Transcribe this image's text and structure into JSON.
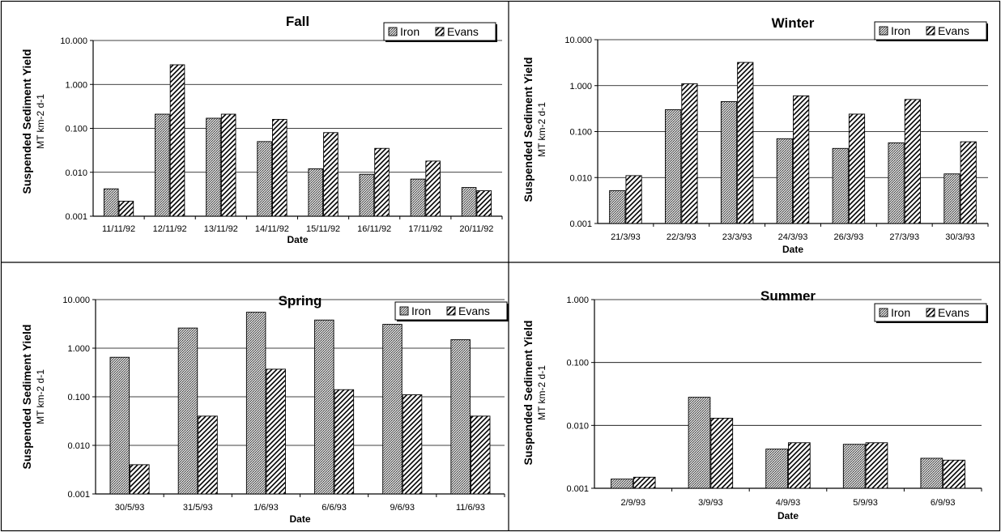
{
  "chart_data": [
    {
      "type": "bar",
      "title": "Fall",
      "ylabel": "Suspended Sediment Yield",
      "yunit": "MT km-2 d-1",
      "xlabel": "Date",
      "yscale": "log",
      "ylim": [
        0.001,
        10
      ],
      "yticks": [
        "0.001",
        "0.010",
        "0.100",
        "1.000",
        "10.000"
      ],
      "grid": true,
      "legend_position": "top-right",
      "categories": [
        "11/11/92",
        "12/11/92",
        "13/11/92",
        "14/11/92",
        "15/11/92",
        "16/11/92",
        "17/11/92",
        "20/11/92"
      ],
      "series": [
        {
          "name": "Iron",
          "values": [
            0.0042,
            0.21,
            0.17,
            0.05,
            0.012,
            0.009,
            0.007,
            0.0045
          ]
        },
        {
          "name": "Evans",
          "values": [
            0.0022,
            2.8,
            0.21,
            0.16,
            0.08,
            0.035,
            0.018,
            0.0038
          ]
        }
      ]
    },
    {
      "type": "bar",
      "title": "Winter",
      "ylabel": "Suspended Sediment Yield",
      "yunit": "MT km-2 d-1",
      "xlabel": "Date",
      "yscale": "log",
      "ylim": [
        0.001,
        10
      ],
      "yticks": [
        "0.001",
        "0.010",
        "0.100",
        "1.000",
        "10.000"
      ],
      "grid": true,
      "legend_position": "top-right",
      "categories": [
        "21/3/93",
        "22/3/93",
        "23/3/93",
        "24/3/93",
        "26/3/93",
        "27/3/93",
        "30/3/93"
      ],
      "series": [
        {
          "name": "Iron",
          "values": [
            0.0052,
            0.3,
            0.45,
            0.07,
            0.043,
            0.057,
            0.012
          ]
        },
        {
          "name": "Evans",
          "values": [
            0.011,
            1.1,
            3.2,
            0.6,
            0.24,
            0.5,
            0.06
          ]
        }
      ]
    },
    {
      "type": "bar",
      "title": "Spring",
      "ylabel": "Suspended Sediment Yield",
      "yunit": "MT km-2 d-1",
      "xlabel": "Date",
      "yscale": "log",
      "ylim": [
        0.001,
        10
      ],
      "yticks": [
        "0.001",
        "0.010",
        "0.100",
        "1.000",
        "10.000"
      ],
      "grid": true,
      "legend_position": "top-right",
      "categories": [
        "30/5/93",
        "31/5/93",
        "1/6/93",
        "6/6/93",
        "9/6/93",
        "11/6/93"
      ],
      "series": [
        {
          "name": "Iron",
          "values": [
            0.65,
            2.6,
            5.5,
            3.8,
            3.1,
            1.5
          ]
        },
        {
          "name": "Evans",
          "values": [
            0.004,
            0.04,
            0.37,
            0.14,
            0.11,
            0.04
          ]
        }
      ]
    },
    {
      "type": "bar",
      "title": "Summer",
      "ylabel": "Suspended Sediment Yield",
      "yunit": "MT km-2 d-1",
      "xlabel": "Date",
      "yscale": "log",
      "ylim": [
        0.001,
        1
      ],
      "yticks": [
        "0.001",
        "0.010",
        "0.100",
        "1.000"
      ],
      "grid": true,
      "legend_position": "top-right",
      "categories": [
        "2/9/93",
        "3/9/93",
        "4/9/93",
        "5/9/93",
        "6/9/93"
      ],
      "series": [
        {
          "name": "Iron",
          "values": [
            0.0014,
            0.028,
            0.0042,
            0.005,
            0.003
          ]
        },
        {
          "name": "Evans",
          "values": [
            0.0015,
            0.013,
            0.0053,
            0.0053,
            0.0028
          ]
        }
      ]
    }
  ]
}
